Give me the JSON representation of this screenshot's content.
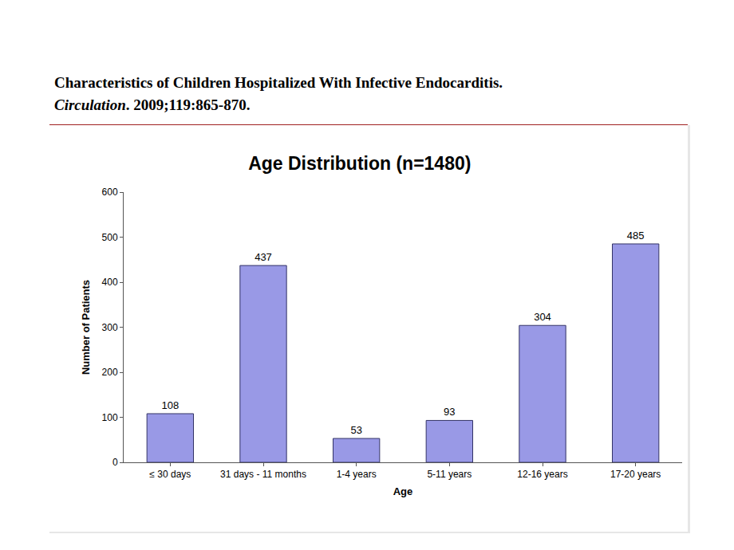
{
  "header": {
    "title": "Characteristics of Children Hospitalized With Infective Endocarditis.",
    "journal": "Circulation",
    "citation": ". 2009;119:865-870."
  },
  "chart_data": {
    "type": "bar",
    "title": "Age Distribution (n=1480)",
    "x_label": "Age",
    "y_label": "Number of Patients",
    "categories": [
      "≤ 30 days",
      "31 days - 11 months",
      "1-4 years",
      "5-11 years",
      "12-16 years",
      "17-20 years"
    ],
    "values": [
      108,
      437,
      53,
      93,
      304,
      485
    ],
    "color": "#9999e6",
    "ylim": [
      0,
      600
    ],
    "yticks": [
      0,
      100,
      200,
      300,
      400,
      500,
      600
    ],
    "grid": false,
    "data_labels": true
  }
}
